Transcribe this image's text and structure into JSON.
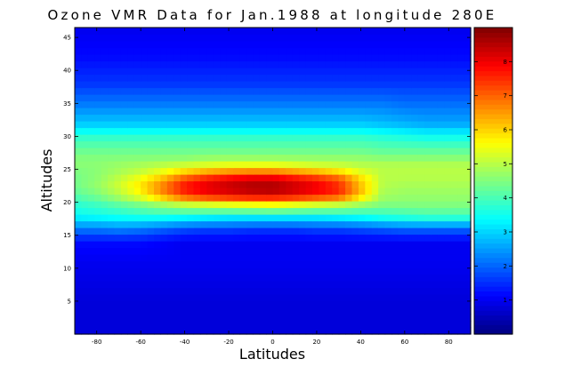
{
  "chart_data": {
    "type": "heatmap",
    "title": "Ozone VMR Data for Jan.1988 at longitude 280E",
    "xlabel": "Latitudes",
    "ylabel": "Altitudes",
    "xlim": [
      -90,
      90
    ],
    "ylim": [
      0,
      46.5
    ],
    "x_ticks": [
      -80,
      -60,
      -40,
      -20,
      0,
      20,
      40,
      60,
      80
    ],
    "y_ticks": [
      5,
      10,
      15,
      20,
      25,
      30,
      35,
      40,
      45
    ],
    "colorbar": {
      "colormap": "jet",
      "range": [
        0,
        9
      ],
      "ticks": [
        1,
        2,
        3,
        4,
        5,
        6,
        7,
        8
      ]
    },
    "latitudes": [
      -90,
      -80,
      -70,
      -60,
      -50,
      -40,
      -30,
      -20,
      -10,
      0,
      10,
      20,
      30,
      40,
      50,
      60,
      70,
      80,
      90
    ],
    "altitudes": [
      2,
      5,
      8,
      11,
      14,
      16,
      18,
      20,
      21,
      22,
      23,
      24,
      25,
      26,
      27,
      28,
      30,
      32,
      35,
      38,
      42,
      46
    ],
    "values": [
      [
        0.8,
        0.8,
        0.8,
        0.8,
        0.8,
        0.8,
        0.8,
        0.8,
        0.8,
        0.8,
        0.8,
        0.8,
        0.8,
        0.8,
        0.8,
        0.8,
        0.8,
        0.8,
        0.8
      ],
      [
        0.8,
        0.8,
        0.8,
        0.8,
        0.8,
        0.8,
        0.8,
        0.8,
        0.8,
        0.8,
        0.8,
        0.8,
        0.8,
        0.8,
        0.8,
        0.8,
        0.8,
        0.8,
        0.8
      ],
      [
        0.9,
        0.9,
        0.9,
        0.9,
        0.9,
        0.9,
        0.9,
        0.9,
        0.9,
        0.9,
        0.9,
        0.9,
        0.9,
        0.9,
        0.9,
        0.9,
        0.9,
        0.9,
        0.9
      ],
      [
        1.0,
        1.0,
        1.0,
        1.0,
        1.0,
        1.0,
        1.0,
        1.0,
        1.0,
        1.0,
        1.0,
        1.0,
        1.0,
        1.0,
        1.0,
        1.0,
        1.0,
        1.0,
        1.0
      ],
      [
        1.2,
        1.2,
        1.2,
        1.2,
        1.1,
        1.0,
        1.0,
        1.0,
        1.0,
        1.0,
        1.0,
        1.0,
        1.0,
        1.0,
        1.0,
        1.0,
        1.0,
        1.0,
        1.0
      ],
      [
        2.2,
        2.2,
        2.3,
        2.2,
        2.0,
        1.8,
        1.7,
        1.7,
        1.6,
        1.6,
        1.6,
        1.7,
        1.7,
        1.8,
        1.9,
        2.0,
        2.0,
        2.0,
        2.0
      ],
      [
        3.4,
        3.5,
        3.6,
        3.7,
        3.7,
        3.6,
        3.5,
        3.4,
        3.4,
        3.4,
        3.4,
        3.4,
        3.5,
        3.6,
        3.8,
        3.9,
        4.0,
        4.0,
        4.0
      ],
      [
        3.8,
        4.0,
        4.3,
        4.6,
        5.0,
        5.4,
        5.6,
        5.8,
        5.9,
        6.0,
        5.8,
        5.6,
        5.4,
        5.0,
        4.6,
        4.6,
        4.6,
        4.6,
        4.6
      ],
      [
        4.1,
        4.4,
        4.9,
        5.5,
        6.4,
        7.3,
        7.7,
        7.9,
        8.1,
        8.1,
        7.9,
        7.6,
        7.3,
        6.0,
        4.8,
        4.7,
        4.7,
        4.7,
        4.7
      ],
      [
        4.3,
        4.6,
        5.1,
        5.8,
        6.8,
        7.7,
        8.1,
        8.3,
        8.5,
        8.6,
        8.3,
        8.0,
        7.6,
        6.3,
        4.9,
        4.8,
        4.8,
        4.8,
        4.8
      ],
      [
        4.4,
        4.7,
        5.2,
        5.8,
        6.6,
        7.6,
        8.0,
        8.3,
        8.5,
        8.5,
        8.2,
        7.9,
        7.4,
        6.1,
        5.0,
        4.9,
        4.9,
        4.9,
        4.9
      ],
      [
        4.4,
        4.6,
        5.0,
        5.4,
        6.0,
        6.8,
        7.3,
        7.6,
        7.8,
        7.8,
        7.5,
        7.2,
        6.8,
        5.8,
        5.0,
        5.0,
        5.0,
        5.0,
        5.0
      ],
      [
        4.5,
        4.6,
        4.8,
        5.0,
        5.3,
        5.7,
        6.0,
        6.2,
        6.3,
        6.3,
        6.1,
        5.9,
        5.6,
        5.2,
        5.0,
        5.0,
        5.0,
        5.0,
        5.0
      ],
      [
        4.6,
        4.6,
        4.7,
        4.8,
        4.9,
        5.0,
        5.1,
        5.2,
        5.2,
        5.2,
        5.1,
        5.0,
        5.0,
        4.9,
        4.9,
        4.9,
        4.9,
        4.9,
        4.9
      ],
      [
        4.5,
        4.5,
        4.5,
        4.5,
        4.5,
        4.5,
        4.6,
        4.6,
        4.6,
        4.6,
        4.6,
        4.6,
        4.6,
        4.6,
        4.5,
        4.5,
        4.5,
        4.5,
        4.5
      ],
      [
        4.3,
        4.3,
        4.3,
        4.3,
        4.3,
        4.3,
        4.3,
        4.3,
        4.3,
        4.3,
        4.3,
        4.3,
        4.3,
        4.3,
        4.2,
        4.2,
        4.2,
        4.2,
        4.2
      ],
      [
        3.8,
        3.8,
        3.8,
        3.8,
        3.8,
        3.8,
        3.8,
        3.8,
        3.8,
        3.8,
        3.8,
        3.8,
        3.8,
        3.8,
        3.7,
        3.6,
        3.5,
        3.5,
        3.5
      ],
      [
        2.9,
        2.9,
        2.9,
        2.9,
        2.9,
        2.9,
        2.9,
        2.9,
        2.9,
        2.9,
        2.9,
        2.9,
        2.9,
        2.9,
        2.8,
        2.7,
        2.6,
        2.6,
        2.6
      ],
      [
        2.2,
        2.2,
        2.2,
        2.2,
        2.2,
        2.2,
        2.2,
        2.2,
        2.2,
        2.2,
        2.2,
        2.2,
        2.2,
        2.2,
        2.2,
        2.1,
        2.1,
        2.1,
        2.1
      ],
      [
        1.6,
        1.6,
        1.6,
        1.6,
        1.6,
        1.6,
        1.6,
        1.6,
        1.6,
        1.6,
        1.6,
        1.6,
        1.6,
        1.6,
        1.6,
        1.6,
        1.6,
        1.6,
        1.6
      ],
      [
        1.2,
        1.2,
        1.2,
        1.2,
        1.2,
        1.2,
        1.2,
        1.2,
        1.2,
        1.2,
        1.2,
        1.2,
        1.2,
        1.2,
        1.2,
        1.2,
        1.2,
        1.2,
        1.2
      ],
      [
        1.0,
        1.0,
        1.0,
        1.0,
        1.0,
        1.0,
        1.0,
        1.0,
        1.0,
        1.0,
        1.0,
        1.0,
        1.0,
        1.0,
        1.0,
        1.0,
        1.0,
        1.0,
        1.0
      ]
    ]
  }
}
